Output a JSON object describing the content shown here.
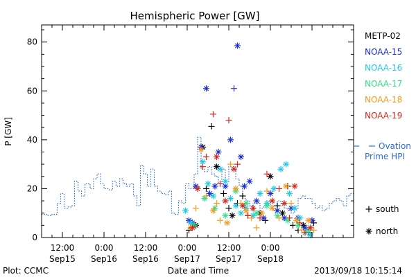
{
  "chart_data": {
    "type": "scatter",
    "title": "Hemispheric Power [GW]",
    "xlabel": "Date and Time",
    "ylabel": "P [GW]",
    "ylim": [
      0,
      87
    ],
    "xlim_hours": [
      -18,
      72
    ],
    "yticks": [
      0,
      20,
      40,
      60,
      80
    ],
    "xticks": [
      {
        "h": -12,
        "time": "12:00",
        "day": "Sep15"
      },
      {
        "h": 0,
        "time": "0:00",
        "day": "Sep16"
      },
      {
        "h": 12,
        "time": "12:00",
        "day": "Sep16"
      },
      {
        "h": 24,
        "time": "0:00",
        "day": "Sep17"
      },
      {
        "h": 36,
        "time": "12:00",
        "day": "Sep17"
      },
      {
        "h": 48,
        "time": "0:00",
        "day": "Sep18"
      }
    ],
    "footer_left": "Plot: CCMC",
    "footer_right": "2013/09/18 10:15:14",
    "colors": {
      "METP-02": "#000000",
      "NOAA-15": "#1a2fd0",
      "NOAA-16": "#22c8e8",
      "NOAA-17": "#2ee08a",
      "NOAA-18": "#f59a1c",
      "NOAA-19": "#d4281c",
      "ovation": "#2a6bd6"
    },
    "legend": [
      "METP-02",
      "NOAA-15",
      "NOAA-16",
      "NOAA-17",
      "NOAA-18",
      "NOAA-19"
    ],
    "ovation_label": "Ovation Prime HPI",
    "ovation_label_line1": "Ovation",
    "ovation_label_line2": "Prime HPI",
    "marker_legend": [
      {
        "symbol": "+",
        "label": "south"
      },
      {
        "symbol": "*",
        "label": "north"
      }
    ],
    "ovation": [
      [
        -18,
        9.5
      ],
      [
        -16.5,
        9
      ],
      [
        -15,
        9.5
      ],
      [
        -13.5,
        14
      ],
      [
        -12.5,
        18
      ],
      [
        -11.5,
        12
      ],
      [
        -10.5,
        12.5
      ],
      [
        -9.5,
        13
      ],
      [
        -8.5,
        23
      ],
      [
        -7.5,
        19
      ],
      [
        -6.5,
        17
      ],
      [
        -5.5,
        22
      ],
      [
        -4,
        20
      ],
      [
        -3,
        24
      ],
      [
        -2,
        26
      ],
      [
        -1,
        22
      ],
      [
        0,
        20
      ],
      [
        1.5,
        19.5
      ],
      [
        2.5,
        23
      ],
      [
        3.5,
        21
      ],
      [
        4.5,
        24
      ],
      [
        5.5,
        22
      ],
      [
        6.5,
        21
      ],
      [
        7.5,
        22
      ],
      [
        8.5,
        17
      ],
      [
        9.5,
        13
      ],
      [
        10.5,
        29.5
      ],
      [
        11.5,
        26
      ],
      [
        12.5,
        21
      ],
      [
        13.5,
        28
      ],
      [
        14.5,
        21
      ],
      [
        15.5,
        19
      ],
      [
        16.5,
        18
      ],
      [
        17.5,
        17.5
      ],
      [
        18.5,
        19
      ],
      [
        19.5,
        10
      ],
      [
        20.5,
        9.5
      ],
      [
        21.5,
        15
      ],
      [
        22.5,
        14
      ],
      [
        23.5,
        22
      ],
      [
        24.5,
        20
      ],
      [
        25.5,
        20
      ],
      [
        26,
        26
      ],
      [
        27,
        41
      ],
      [
        28,
        28
      ],
      [
        29,
        27
      ],
      [
        30,
        29
      ],
      [
        31,
        26
      ],
      [
        32,
        25
      ],
      [
        33,
        22
      ],
      [
        34,
        28
      ],
      [
        35,
        23
      ],
      [
        36,
        29
      ],
      [
        37,
        29
      ],
      [
        38,
        24
      ],
      [
        39,
        21
      ],
      [
        40,
        16
      ],
      [
        41,
        15
      ],
      [
        42,
        13
      ],
      [
        43,
        14
      ],
      [
        44,
        14
      ],
      [
        45,
        12
      ],
      [
        46,
        13
      ],
      [
        47,
        15
      ],
      [
        48,
        13
      ],
      [
        49,
        11
      ],
      [
        50,
        15
      ],
      [
        51,
        14
      ],
      [
        52,
        12
      ],
      [
        53,
        11
      ],
      [
        54,
        10
      ],
      [
        55,
        12
      ],
      [
        56,
        16
      ],
      [
        57,
        17
      ],
      [
        58,
        16
      ],
      [
        59,
        16
      ],
      [
        60,
        14
      ],
      [
        61,
        12
      ],
      [
        62,
        13
      ],
      [
        63,
        11
      ],
      [
        64,
        12
      ],
      [
        65,
        14
      ],
      [
        66,
        15
      ],
      [
        67,
        16
      ],
      [
        68,
        15
      ],
      [
        69,
        13
      ],
      [
        70,
        17
      ],
      [
        71,
        18
      ],
      [
        72,
        18
      ]
    ],
    "series": [
      {
        "name": "METP-02",
        "points": [
          [
            24.5,
            3,
            "+"
          ],
          [
            25.5,
            6,
            "+"
          ],
          [
            26.5,
            5,
            "*"
          ],
          [
            28.5,
            37,
            "*"
          ],
          [
            29.5,
            20,
            "+"
          ],
          [
            31,
            45.5,
            "+"
          ],
          [
            32.5,
            29,
            "*"
          ],
          [
            34.5,
            18,
            "+"
          ],
          [
            36,
            12,
            "+"
          ],
          [
            37,
            9,
            "*"
          ],
          [
            38.5,
            14,
            "+"
          ],
          [
            40,
            17,
            "+"
          ],
          [
            41.5,
            9,
            "+"
          ],
          [
            43,
            12,
            "+"
          ],
          [
            45,
            10,
            "*"
          ],
          [
            46.5,
            7,
            "+"
          ],
          [
            48,
            25,
            "*"
          ],
          [
            50,
            13,
            "+"
          ],
          [
            51.5,
            10,
            "*"
          ],
          [
            53,
            21,
            "+"
          ],
          [
            54.5,
            5,
            "+"
          ],
          [
            56,
            3,
            "+"
          ],
          [
            57.5,
            5,
            "*"
          ],
          [
            59,
            2,
            "+"
          ],
          [
            60.5,
            6,
            "+"
          ]
        ]
      },
      {
        "name": "NOAA-15",
        "points": [
          [
            24.5,
            7,
            "*"
          ],
          [
            25.5,
            6,
            "*"
          ],
          [
            26.5,
            21,
            "*"
          ],
          [
            28,
            37,
            "*"
          ],
          [
            29.5,
            61,
            "*"
          ],
          [
            30.5,
            18,
            "*"
          ],
          [
            32,
            21,
            "*"
          ],
          [
            33,
            35,
            "*"
          ],
          [
            35,
            21,
            "*"
          ],
          [
            36.5,
            40,
            "*"
          ],
          [
            37.5,
            61,
            "+"
          ],
          [
            38.5,
            78.5,
            "*"
          ],
          [
            39.5,
            33,
            "*"
          ],
          [
            40.5,
            21,
            "*"
          ],
          [
            42,
            23,
            "*"
          ],
          [
            44,
            15,
            "*"
          ],
          [
            46,
            8,
            "*"
          ],
          [
            48,
            18,
            "*"
          ],
          [
            50,
            11,
            "*"
          ],
          [
            52,
            8,
            "*"
          ],
          [
            54,
            12,
            "*"
          ],
          [
            56,
            8,
            "*"
          ],
          [
            58,
            4,
            "*"
          ],
          [
            60,
            7,
            "*"
          ]
        ]
      },
      {
        "name": "NOAA-16",
        "points": [
          [
            23.5,
            11,
            "*"
          ],
          [
            25,
            6,
            "*"
          ],
          [
            27,
            20,
            "*"
          ],
          [
            28.5,
            31,
            "*"
          ],
          [
            30,
            22,
            "*"
          ],
          [
            31.5,
            17,
            "*"
          ],
          [
            33.5,
            28,
            "*"
          ],
          [
            35,
            23,
            "*"
          ],
          [
            36.5,
            16,
            "*"
          ],
          [
            38,
            13,
            "*"
          ],
          [
            39.5,
            10,
            "*"
          ],
          [
            41,
            12,
            "*"
          ],
          [
            43,
            9,
            "*"
          ],
          [
            45,
            18,
            "*"
          ],
          [
            47,
            14,
            "*"
          ],
          [
            49,
            20,
            "*"
          ],
          [
            51,
            28,
            "*"
          ],
          [
            52.5,
            30,
            "*"
          ],
          [
            53.5,
            18,
            "*"
          ],
          [
            55,
            12,
            "*"
          ],
          [
            56.5,
            8,
            "*"
          ],
          [
            58,
            2,
            "*"
          ],
          [
            59.5,
            1,
            "*"
          ]
        ]
      },
      {
        "name": "NOAA-17",
        "points": [
          [
            26,
            5,
            "*"
          ],
          [
            29,
            16,
            "*"
          ],
          [
            32,
            12,
            "*"
          ],
          [
            35,
            9,
            "*"
          ],
          [
            38,
            19,
            "*"
          ],
          [
            41,
            14,
            "*"
          ],
          [
            44,
            10,
            "*"
          ],
          [
            47,
            13,
            "*"
          ],
          [
            50,
            9,
            "*"
          ],
          [
            53,
            7,
            "*"
          ],
          [
            56,
            5,
            "*"
          ],
          [
            59,
            3,
            "*"
          ]
        ]
      },
      {
        "name": "NOAA-18",
        "points": [
          [
            25,
            4,
            "*"
          ],
          [
            26.5,
            12,
            "+"
          ],
          [
            28,
            36,
            "*"
          ],
          [
            29.5,
            17,
            "+"
          ],
          [
            31.5,
            11,
            "*"
          ],
          [
            32.5,
            14,
            "+"
          ],
          [
            33.5,
            7,
            "+"
          ],
          [
            35.5,
            6,
            "*"
          ],
          [
            36.5,
            30,
            "+"
          ],
          [
            38,
            20,
            "*"
          ],
          [
            39.5,
            14,
            "+"
          ],
          [
            41,
            11,
            "*"
          ],
          [
            42.5,
            8,
            "+"
          ],
          [
            44,
            4,
            "+"
          ],
          [
            45.5,
            10,
            "*"
          ],
          [
            47,
            19,
            "+"
          ],
          [
            48.5,
            12,
            "*"
          ],
          [
            50.5,
            8,
            "+"
          ],
          [
            52.5,
            21,
            "*"
          ],
          [
            54,
            14,
            "+"
          ],
          [
            55.5,
            7,
            "*"
          ],
          [
            57,
            3,
            "+"
          ],
          [
            59,
            7,
            "*"
          ],
          [
            60.5,
            3,
            "+"
          ]
        ]
      },
      {
        "name": "NOAA-19",
        "points": [
          [
            25.5,
            4,
            "*"
          ],
          [
            27,
            20,
            "*"
          ],
          [
            28.5,
            29,
            "+"
          ],
          [
            29.5,
            33,
            "+"
          ],
          [
            31.5,
            50.5,
            "+"
          ],
          [
            32.5,
            33,
            "*"
          ],
          [
            33.5,
            22,
            "+"
          ],
          [
            35,
            15,
            "*"
          ],
          [
            36,
            48,
            "+"
          ],
          [
            37.5,
            28,
            "*"
          ],
          [
            38.5,
            30,
            "+"
          ],
          [
            40,
            13,
            "*"
          ],
          [
            41.5,
            9,
            "+"
          ],
          [
            43,
            12,
            "*"
          ],
          [
            45,
            8,
            "+"
          ],
          [
            47,
            26,
            "+"
          ],
          [
            48.5,
            15,
            "*"
          ],
          [
            50.5,
            20,
            "+"
          ],
          [
            52,
            14,
            "*"
          ],
          [
            53.5,
            8,
            "+"
          ],
          [
            55,
            21,
            "*"
          ],
          [
            56.5,
            6,
            "+"
          ],
          [
            58,
            2,
            "+"
          ],
          [
            59.5,
            4,
            "*"
          ]
        ]
      }
    ]
  }
}
